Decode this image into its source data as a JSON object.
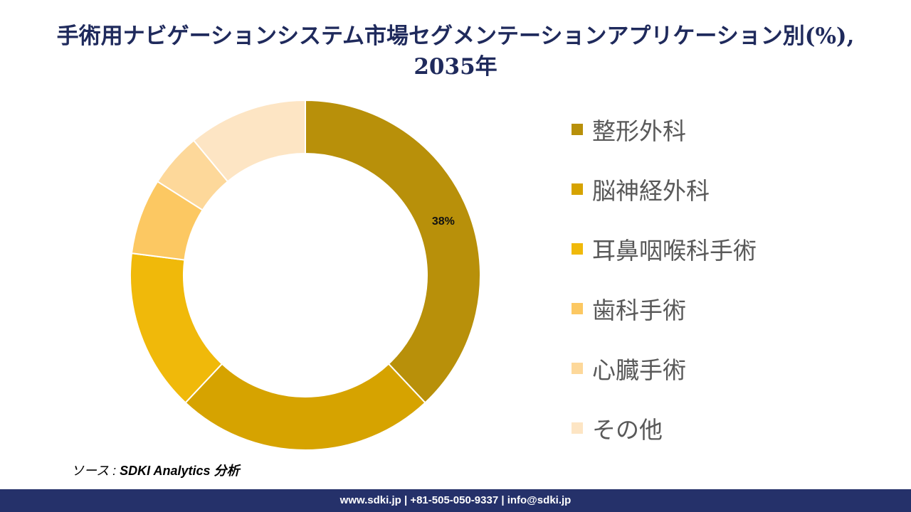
{
  "title": "手術用ナビゲーションシステム市場セグメンテーションアプリケーション別(%), 2035年",
  "chart_data": {
    "type": "pie",
    "style": "donut",
    "categories": [
      "整形外科",
      "脳神経外科",
      "耳鼻咽喉科手術",
      "歯科手術",
      "心臓手術",
      "その他"
    ],
    "values": [
      38,
      24,
      15,
      7,
      5,
      11
    ],
    "colors": [
      "#b8900a",
      "#d6a300",
      "#f0b90a",
      "#fcc862",
      "#fdd89a",
      "#fde5c4"
    ],
    "data_labels": [
      "38%",
      "",
      "",
      "",
      "",
      ""
    ],
    "legend_position": "right"
  },
  "source": {
    "prefix": "ソース :",
    "text": " SDKI Analytics 分析"
  },
  "footer": {
    "text": "www.sdki.jp | +81-505-050-9337 | info@sdki.jp"
  }
}
